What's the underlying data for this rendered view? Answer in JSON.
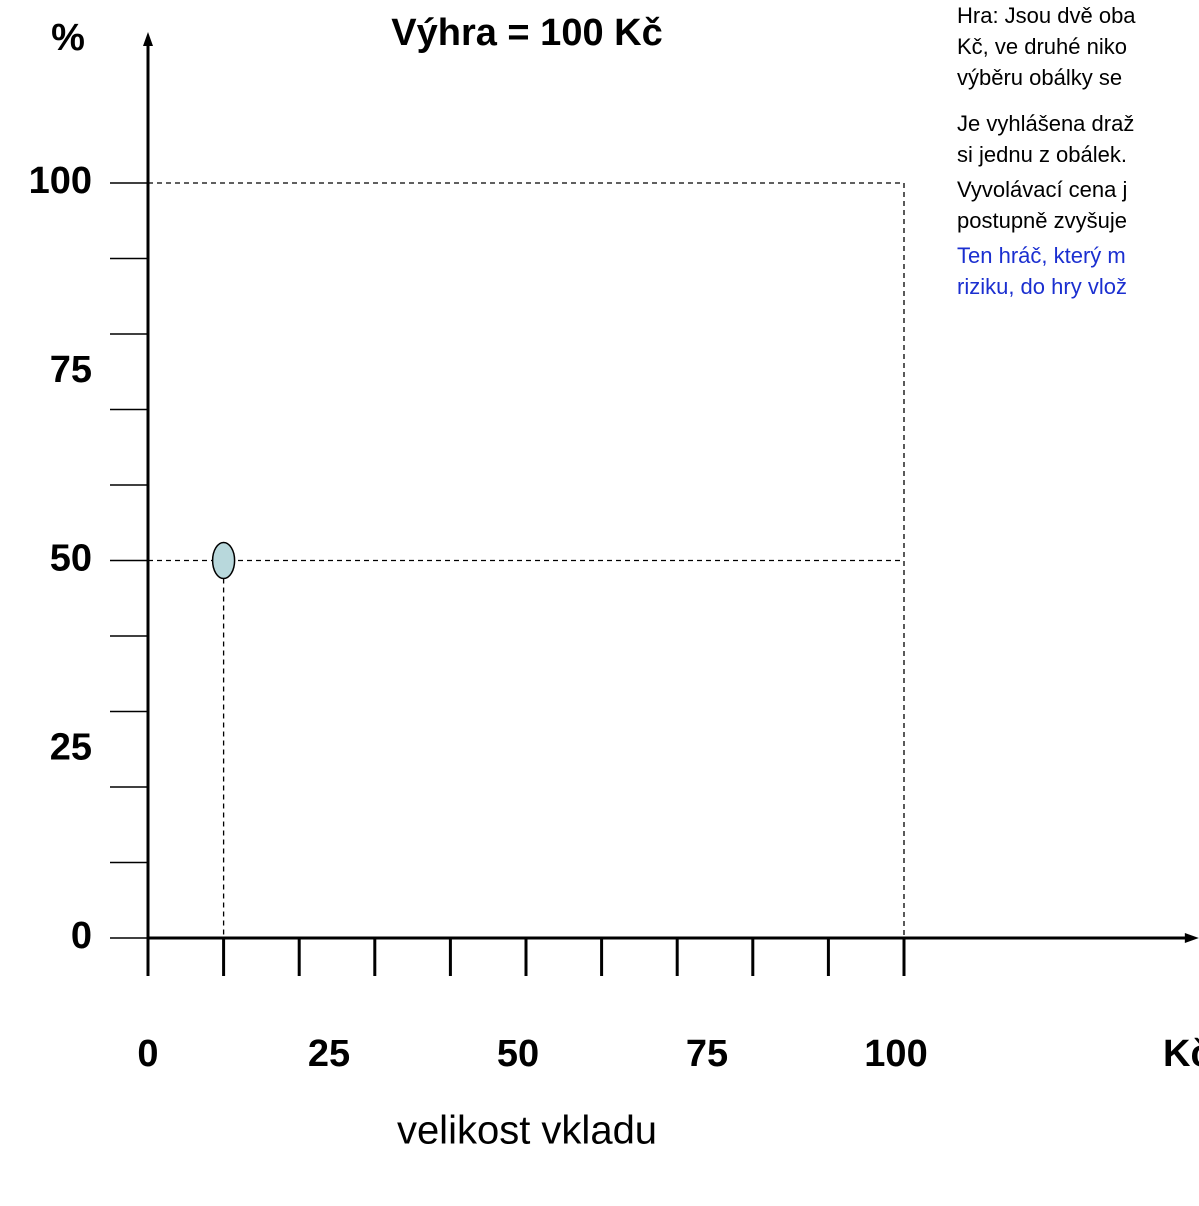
{
  "chart_data": {
    "type": "scatter",
    "title": "Výhra = 100 Kč",
    "x_label": "velikost vkladu",
    "x_unit": "Kč",
    "y_unit": "%",
    "x": [
      10
    ],
    "values": [
      50
    ],
    "color": "#b8d8dc",
    "xlim": [
      0,
      139
    ],
    "ylim": [
      0,
      120
    ],
    "xticks": [
      0,
      25,
      50,
      75,
      100
    ],
    "yticks": [
      0,
      25,
      50,
      75,
      100
    ],
    "xminor": [
      0,
      10,
      20,
      30,
      40,
      50,
      60,
      70,
      80,
      90,
      100
    ],
    "yminor": [
      0,
      10,
      20,
      30,
      40,
      50,
      60,
      70,
      80,
      90,
      100
    ],
    "notes": [
      [
        "Hra: Jsou dvě oba",
        "Kč, ve druhé niko",
        "výběru obálky se"
      ],
      [
        "Je vyhlášena draž",
        "si jednu z obálek."
      ],
      [
        "Vyvolávací cena j",
        "postupně zvyšuje"
      ]
    ],
    "highlight": [
      "Ten hráč, který m",
      "riziku, do hry vlož"
    ]
  }
}
